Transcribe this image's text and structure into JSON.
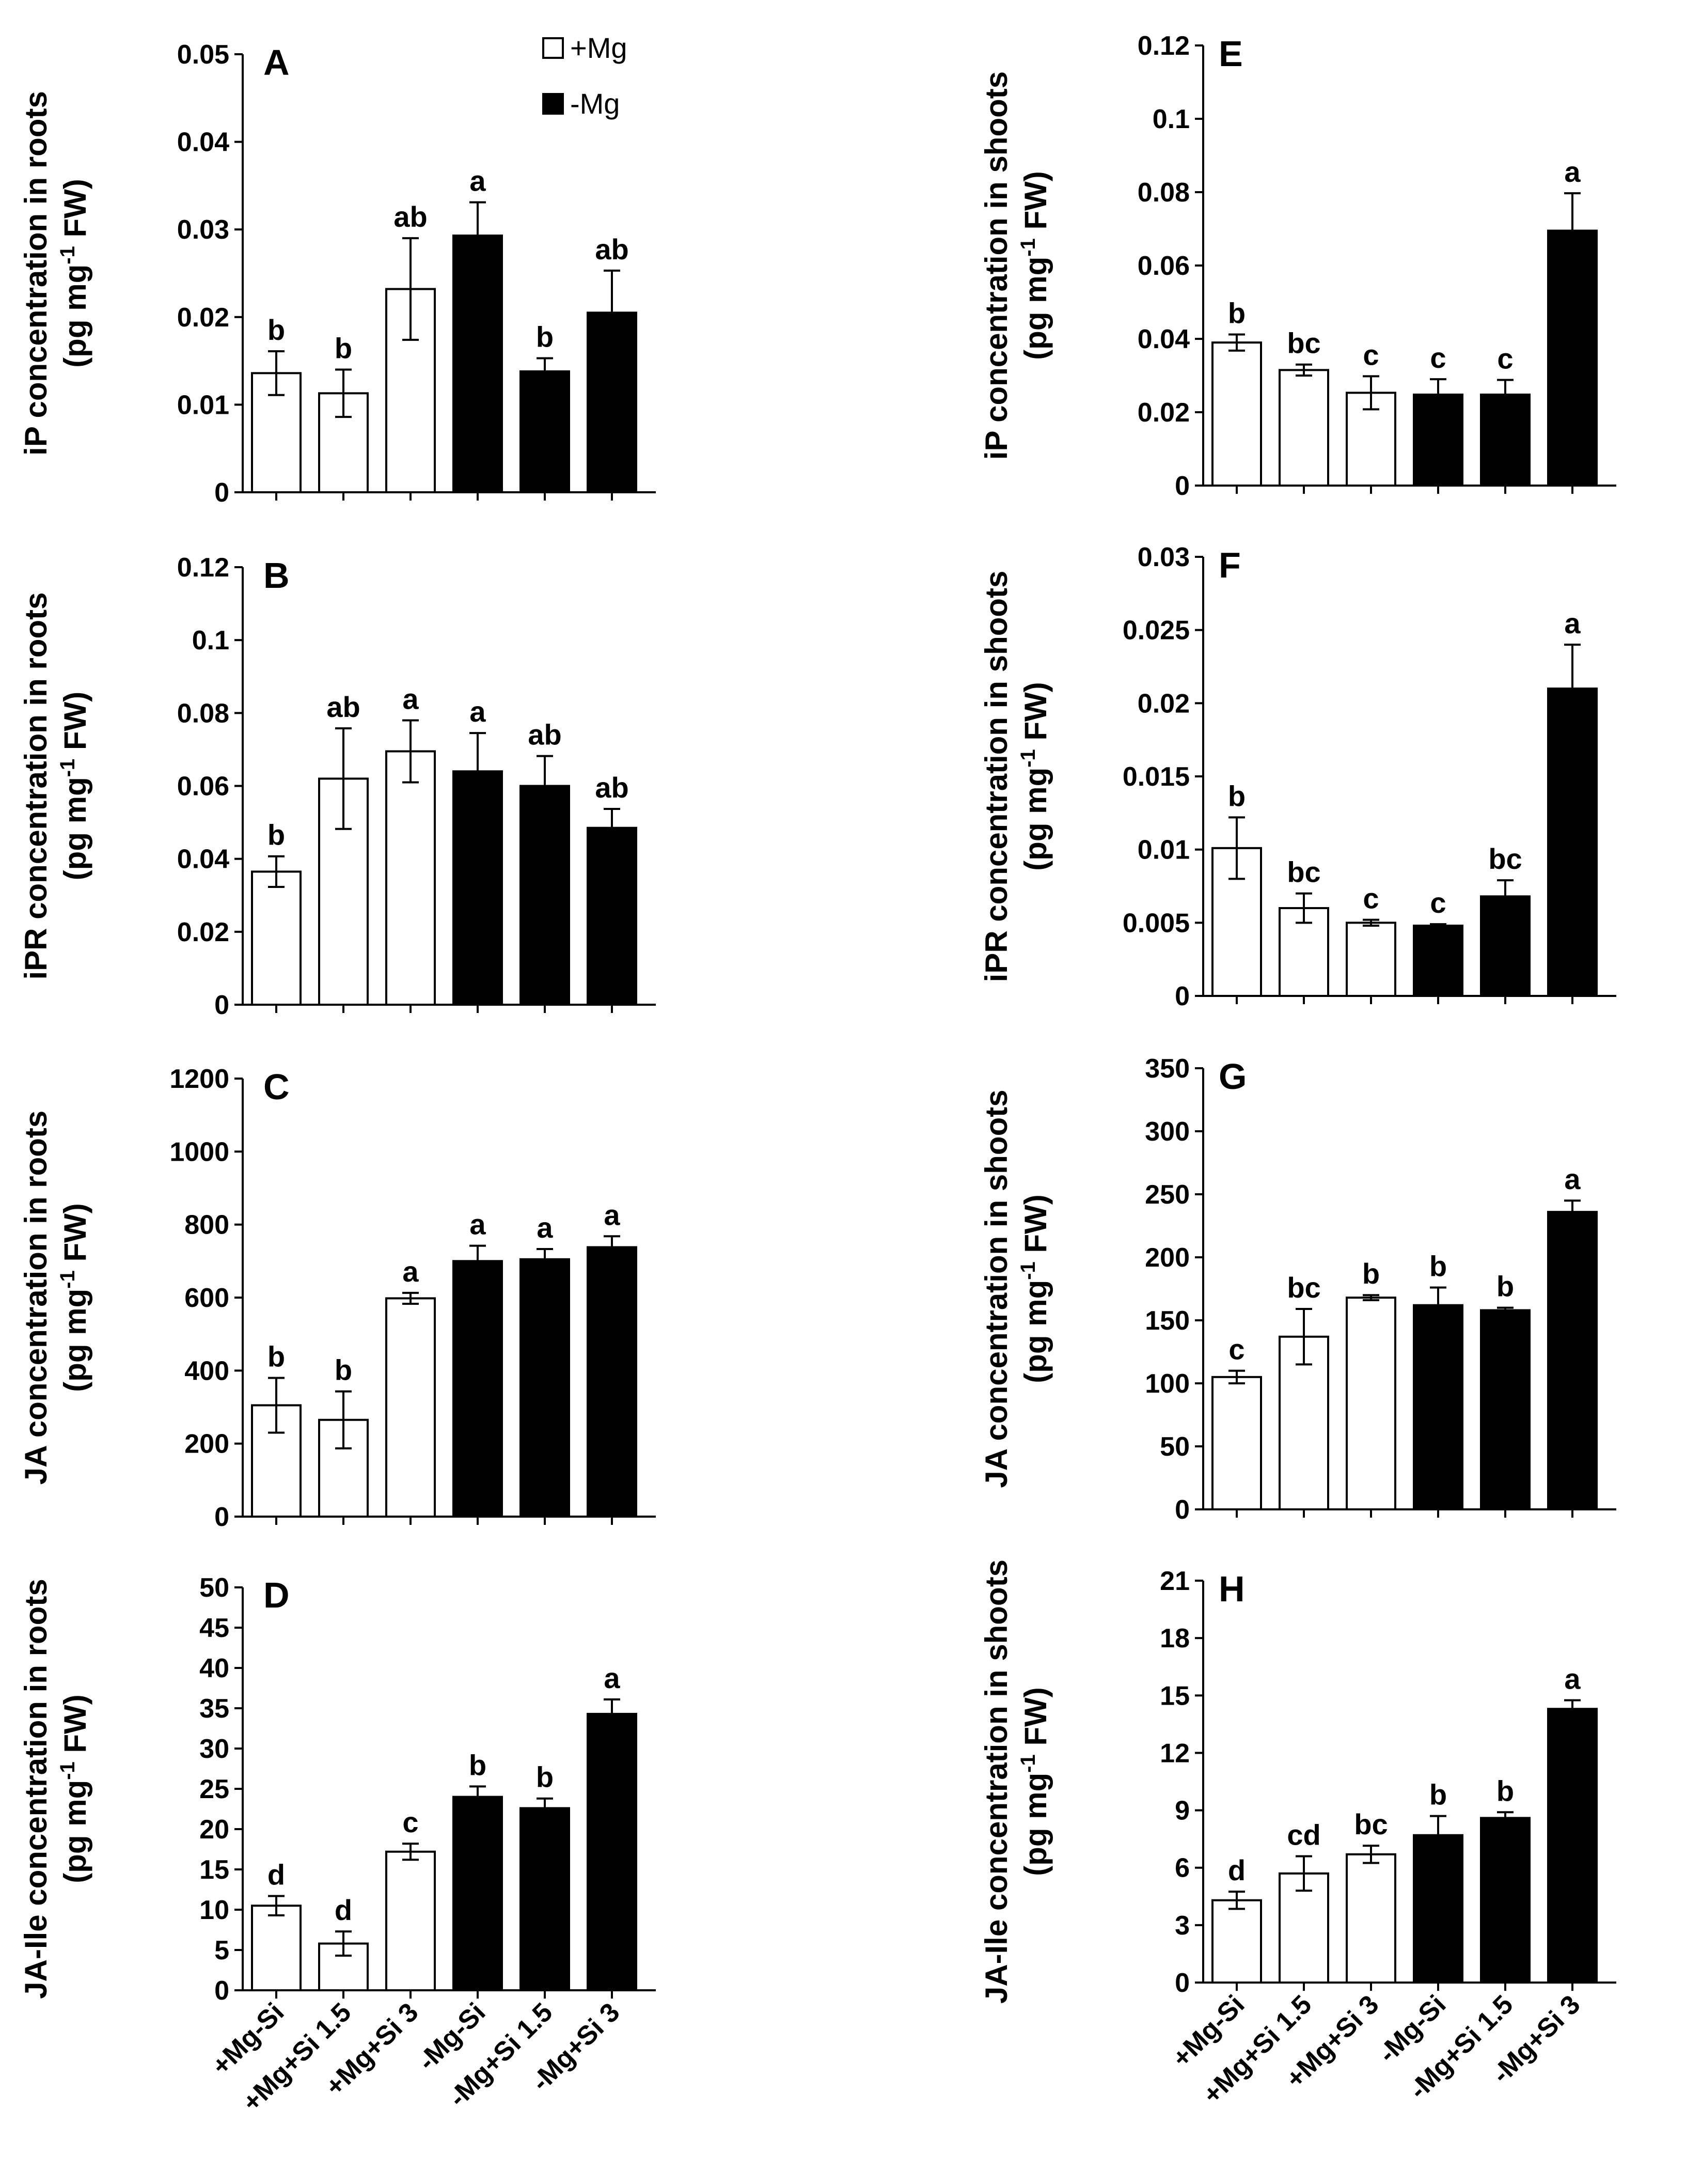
{
  "legend": [
    {
      "label": "+Mg",
      "fill": "#ffffff"
    },
    {
      "label": "-Mg",
      "fill": "#000000"
    }
  ],
  "categories": [
    "+Mg-Si",
    "+Mg+Si 1.5",
    "+Mg+Si 3",
    "-Mg-Si",
    "-Mg+Si 1.5",
    "-Mg+Si 3"
  ],
  "colors": {
    "plus_mg": "#ffffff",
    "minus_mg": "#000000",
    "stroke": "#000000"
  },
  "chart_data": [
    {
      "type": "bar",
      "panel": "A",
      "ylabel_line1": "iP concentration in roots",
      "ylabel_line2_pre": "(pg mg",
      "ylabel_sup": "-1",
      "ylabel_line2_post": " FW)",
      "ylim": [
        0,
        0.05
      ],
      "ticks": [
        "0",
        "0.01",
        "0.02",
        "0.03",
        "0.04",
        "0.05"
      ],
      "tick_values": [
        0,
        0.01,
        0.02,
        0.03,
        0.04,
        0.05
      ],
      "values": [
        0.0136,
        0.0113,
        0.0232,
        0.0293,
        0.0138,
        0.0205
      ],
      "errors": [
        0.0025,
        0.0027,
        0.0058,
        0.0038,
        0.0015,
        0.0048
      ],
      "labels": [
        "b",
        "b",
        "ab",
        "a",
        "b",
        "ab"
      ]
    },
    {
      "type": "bar",
      "panel": "B",
      "ylabel_line1": "iPR concentration in roots",
      "ylabel_line2_pre": "(pg mg",
      "ylabel_sup": "-1",
      "ylabel_line2_post": " FW)",
      "ylim": [
        0,
        0.12
      ],
      "ticks": [
        "0",
        "0.02",
        "0.04",
        "0.06",
        "0.08",
        "0.1",
        "0.12"
      ],
      "tick_values": [
        0,
        0.02,
        0.04,
        0.06,
        0.08,
        0.1,
        0.12
      ],
      "values": [
        0.0365,
        0.062,
        0.0695,
        0.064,
        0.06,
        0.0485
      ],
      "errors": [
        0.0042,
        0.0138,
        0.0085,
        0.0105,
        0.0082,
        0.0052
      ],
      "labels": [
        "b",
        "ab",
        "a",
        "a",
        "ab",
        "ab"
      ]
    },
    {
      "type": "bar",
      "panel": "C",
      "ylabel_line1": "JA concentration in roots",
      "ylabel_line2_pre": "(pg mg",
      "ylabel_sup": "-1",
      "ylabel_line2_post": " FW)",
      "ylim": [
        0,
        1200
      ],
      "ticks": [
        "0",
        "200",
        "400",
        "600",
        "800",
        "1000",
        "1200"
      ],
      "tick_values": [
        0,
        200,
        400,
        600,
        800,
        1000,
        1200
      ],
      "values": [
        305,
        265,
        598,
        700,
        705,
        738
      ],
      "errors": [
        75,
        78,
        15,
        42,
        28,
        30
      ],
      "labels": [
        "b",
        "b",
        "a",
        "a",
        "a",
        "a"
      ]
    },
    {
      "type": "bar",
      "panel": "D",
      "ylabel_line1": "JA-Ile concentration in roots",
      "ylabel_line2_pre": "(pg mg",
      "ylabel_sup": "-1",
      "ylabel_line2_post": " FW)",
      "ylim": [
        0,
        50
      ],
      "ticks": [
        "0",
        "5",
        "10",
        "15",
        "20",
        "25",
        "30",
        "35",
        "40",
        "45",
        "50"
      ],
      "tick_values": [
        0,
        5,
        10,
        15,
        20,
        25,
        30,
        35,
        40,
        45,
        50
      ],
      "values": [
        10.5,
        5.8,
        17.2,
        24,
        22.6,
        34.3
      ],
      "errors": [
        1.2,
        1.5,
        1.0,
        1.3,
        1.2,
        1.8
      ],
      "labels": [
        "d",
        "d",
        "c",
        "b",
        "b",
        "a"
      ],
      "show_x_labels": true
    },
    {
      "type": "bar",
      "panel": "E",
      "ylabel_line1": "iP concentration in shoots",
      "ylabel_line2_pre": "(pg mg",
      "ylabel_sup": "-1",
      "ylabel_line2_post": " FW)",
      "ylim": [
        0,
        0.12
      ],
      "ticks": [
        "0",
        "0.02",
        "0.04",
        "0.06",
        "0.08",
        "0.1",
        "0.12"
      ],
      "tick_values": [
        0,
        0.02,
        0.04,
        0.06,
        0.08,
        0.1,
        0.12
      ],
      "values": [
        0.039,
        0.0315,
        0.0253,
        0.0248,
        0.0248,
        0.0695
      ],
      "errors": [
        0.0022,
        0.0015,
        0.0045,
        0.0042,
        0.004,
        0.0102
      ],
      "labels": [
        "b",
        "bc",
        "c",
        "c",
        "c",
        "a"
      ]
    },
    {
      "type": "bar",
      "panel": "F",
      "ylabel_line1": "iPR concentration in shoots",
      "ylabel_line2_pre": "(pg mg",
      "ylabel_sup": "-1",
      "ylabel_line2_post": " FW)",
      "ylim": [
        0,
        0.03
      ],
      "ticks": [
        "0",
        "0.005",
        "0.01",
        "0.015",
        "0.02",
        "0.025",
        "0.03"
      ],
      "tick_values": [
        0,
        0.005,
        0.01,
        0.015,
        0.02,
        0.025,
        0.03
      ],
      "values": [
        0.0101,
        0.006,
        0.005,
        0.0048,
        0.0068,
        0.021
      ],
      "errors": [
        0.0021,
        0.001,
        0.0002,
        0.0001,
        0.0011,
        0.003
      ],
      "labels": [
        "b",
        "bc",
        "c",
        "c",
        "bc",
        "a"
      ]
    },
    {
      "type": "bar",
      "panel": "G",
      "ylabel_line1": "JA concentration in shoots",
      "ylabel_line2_pre": "(pg mg",
      "ylabel_sup": "-1",
      "ylabel_line2_post": " FW)",
      "ylim": [
        0,
        350
      ],
      "ticks": [
        "0",
        "50",
        "100",
        "150",
        "200",
        "250",
        "300",
        "350"
      ],
      "tick_values": [
        0,
        50,
        100,
        150,
        200,
        250,
        300,
        350
      ],
      "values": [
        105,
        137,
        168,
        162,
        158,
        236
      ],
      "errors": [
        5,
        22,
        2,
        14,
        2,
        9
      ],
      "labels": [
        "c",
        "bc",
        "b",
        "b",
        "b",
        "a"
      ]
    },
    {
      "type": "bar",
      "panel": "H",
      "ylabel_line1": "JA-Ile concentration in shoots",
      "ylabel_line2_pre": "(pg mg",
      "ylabel_sup": "-1",
      "ylabel_line2_post": " FW)",
      "ylim": [
        0,
        21
      ],
      "ticks": [
        "0",
        "3",
        "6",
        "9",
        "12",
        "15",
        "18",
        "21"
      ],
      "tick_values": [
        0,
        3,
        6,
        9,
        12,
        15,
        18,
        21
      ],
      "values": [
        4.3,
        5.7,
        6.7,
        7.7,
        8.6,
        14.3
      ],
      "errors": [
        0.45,
        0.9,
        0.45,
        1.0,
        0.3,
        0.45
      ],
      "labels": [
        "d",
        "cd",
        "bc",
        "b",
        "b",
        "a"
      ],
      "show_x_labels": true
    }
  ]
}
